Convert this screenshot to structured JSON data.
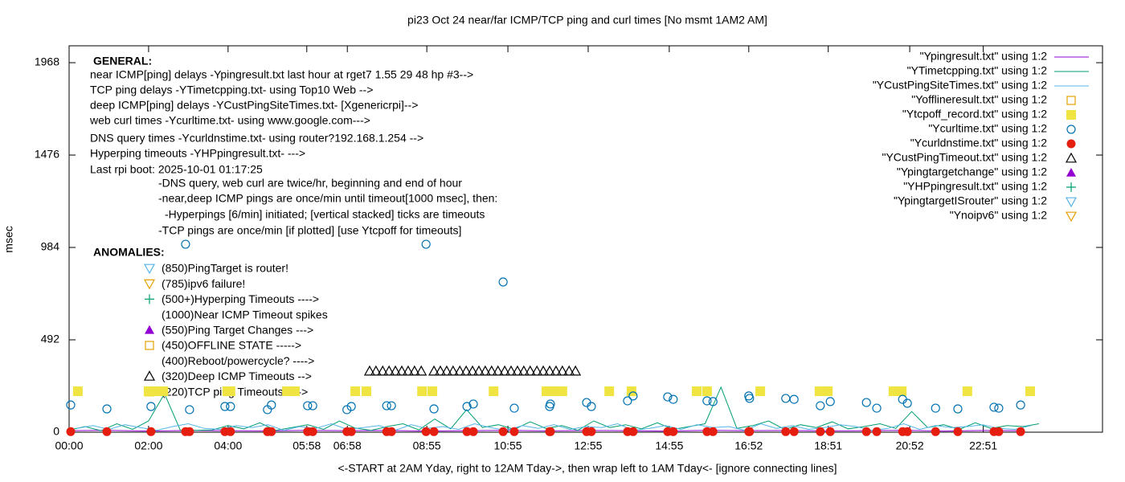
{
  "chart_data": {
    "type": "scatter",
    "title": "pi23 Oct 24 near/far ICMP/TCP ping and curl times [No msmt 1AM2 AM]",
    "x_label": "<-START at 2AM Yday, right to 12AM Tday->, then wrap left to 1AM Tday<- [ignore connecting lines]",
    "y_label": "msec",
    "xlim": [
      0,
      26
    ],
    "ylim": [
      0,
      2058
    ],
    "yticks": [
      0,
      492,
      984,
      1476,
      1968
    ],
    "xticks": [
      {
        "value": 0,
        "label": "00:00"
      },
      {
        "value": 2.0,
        "label": "02:00"
      },
      {
        "value": 4.0,
        "label": "04:00"
      },
      {
        "value": 5.98,
        "label": "05:58"
      },
      {
        "value": 7.0,
        "label": "06:58"
      },
      {
        "value": 9.0,
        "label": "08:55"
      },
      {
        "value": 11.04,
        "label": "10:55"
      },
      {
        "value": 13.06,
        "label": "12:55"
      },
      {
        "value": 15.1,
        "label": "14:55"
      },
      {
        "value": 17.1,
        "label": "16:52"
      },
      {
        "value": 19.1,
        "label": "18:51"
      },
      {
        "value": 21.15,
        "label": "20:52"
      },
      {
        "value": 23.0,
        "label": "22:51"
      }
    ],
    "legend_position": "top-right",
    "annotations": {
      "general_heading": "GENERAL:",
      "general": [
        "near ICMP[ping] delays -Ypingresult.txt last hour at rget7 1.55 29 48 hp #3-->",
        "TCP ping delays -YTimetcpping.txt- using Top10 Web -->",
        "deep ICMP[ping] delays -YCustPingSiteTimes.txt- [Xgenericrpi]-->",
        "web curl times -Ycurltime.txt- using www.google.com--->",
        "DNS query times -Ycurldnstime.txt- using router?192.168.1.254 -->",
        "Hyperping timeouts -YHPpingresult.txt- --->",
        "Last rpi boot: 2025-10-01 01:17:25",
        "-DNS query, web curl are twice/hr, beginning and end of hour",
        "-near,deep ICMP pings are once/min until timeout[1000 msec], then:",
        "-Hyperpings [6/min] initiated; [vertical stacked] ticks are timeouts",
        "-TCP pings are once/min [if plotted] [use Ytcpoff for timeouts]"
      ],
      "anomalies_heading": "ANOMALIES:",
      "anomalies": [
        "(850)PingTarget is router!",
        "(785)ipv6 failure!",
        "(500+)Hyperping Timeouts ---->",
        "(1000)Near ICMP Timeout spikes",
        "(550)Ping Target Changes --->",
        "(450)OFFLINE STATE ----->",
        "(400)Reboot/powercycle? ---->",
        "(320)Deep ICMP Timeouts -->",
        "(220)TCP ping Timeouts ---->"
      ]
    },
    "series": [
      {
        "name": "\"Ypingresult.txt\" using 1:2",
        "color": "#9400d3",
        "marker": "line",
        "x": [
          0,
          1,
          2,
          3,
          4,
          5,
          6,
          7,
          8,
          9,
          10,
          11,
          12,
          13,
          14,
          15,
          16,
          17,
          18,
          19,
          20,
          21,
          22,
          23,
          24
        ],
        "values": [
          8,
          10,
          6,
          9,
          8,
          7,
          10,
          8,
          9,
          6,
          8,
          10,
          7,
          9,
          8,
          6,
          10,
          8,
          9,
          7,
          8,
          10,
          6,
          9,
          8
        ]
      },
      {
        "name": "\"YTimetcpping.txt\" using 1:2",
        "color": "#009e73",
        "marker": "line",
        "x": [
          0,
          0.4,
          0.8,
          1.2,
          1.6,
          2,
          2.4,
          2.8,
          3.2,
          3.6,
          4,
          4.4,
          4.8,
          5.2,
          5.6,
          6,
          6.4,
          6.8,
          7.2,
          7.6,
          8,
          8.4,
          8.8,
          9.2,
          9.6,
          10,
          10.4,
          10.8,
          11.2,
          11.6,
          12,
          12.4,
          12.8,
          13.2,
          13.6,
          14,
          14.4,
          14.8,
          15.2,
          15.6,
          16,
          16.4,
          16.8,
          17.2,
          17.6,
          18,
          18.4,
          18.8,
          19.2,
          19.6,
          20,
          20.4,
          20.8,
          21.2,
          21.6,
          22,
          22.4,
          22.8,
          23.2,
          23.6,
          24,
          24.4
        ],
        "values": [
          12,
          30,
          8,
          45,
          15,
          60,
          205,
          10,
          10,
          12,
          35,
          18,
          50,
          10,
          25,
          40,
          15,
          60,
          22,
          10,
          30,
          45,
          12,
          70,
          18,
          120,
          25,
          40,
          15,
          55,
          20,
          35,
          10,
          60,
          25,
          40,
          18,
          50,
          15,
          30,
          45,
          240,
          20,
          35,
          60,
          15,
          40,
          25,
          55,
          18,
          30,
          45,
          20,
          110,
          25,
          40,
          15,
          50,
          20,
          35,
          30,
          45
        ]
      },
      {
        "name": "\"YCustPingSiteTimes.txt\" using 1:2",
        "color": "#56b4e9",
        "marker": "line",
        "x": [
          0.2,
          0.6,
          1,
          1.4,
          1.8,
          2.2,
          2.6,
          3,
          3.4,
          3.8,
          4.2,
          4.6,
          5,
          5.4,
          5.8,
          6.2,
          6.6,
          7,
          7.4,
          7.8,
          8.2,
          8.6,
          9,
          9.4,
          9.8,
          10.2,
          10.6,
          11,
          11.4,
          11.8,
          12.2,
          12.6,
          13,
          13.4,
          13.8,
          14.2,
          14.6,
          15,
          15.4,
          15.8,
          16.2,
          16.6,
          17,
          17.4,
          17.8,
          18.2,
          18.6,
          19,
          19.4,
          19.8,
          20.2,
          20.6,
          21,
          21.4,
          21.8,
          22.2,
          22.6,
          23,
          23.4,
          23.8,
          24.2
        ],
        "values": [
          20,
          35,
          15,
          40,
          25,
          10,
          30,
          45,
          20,
          15,
          35,
          25,
          40,
          10,
          30,
          20,
          45,
          15,
          25,
          35,
          10,
          40,
          20,
          30,
          15,
          45,
          25,
          10,
          35,
          20,
          40,
          15,
          30,
          25,
          45,
          10,
          20,
          35,
          15,
          40,
          25,
          30,
          10,
          45,
          20,
          35,
          15,
          25,
          40,
          30,
          10,
          20,
          45,
          15,
          35,
          25,
          30,
          40,
          20,
          15,
          35
        ]
      },
      {
        "name": "\"Yofflineresult.txt\" using 1:2",
        "color": "#e69f00",
        "marker": "open-square",
        "x": [],
        "values": []
      },
      {
        "name": "\"Ytcpoff_record.txt\" using 1:2",
        "color": "#f0e442",
        "marker": "filled-square",
        "x": [
          0.22,
          2.0,
          2.18,
          2.37,
          3.98,
          4.06,
          5.48,
          5.68,
          7.2,
          7.48,
          8.88,
          9.14,
          10.68,
          12.01,
          12.21,
          12.41,
          13.59,
          14.15,
          15.79,
          16.05,
          17.39,
          18.88,
          19.09,
          20.74,
          20.95,
          22.6,
          24.18
        ],
        "values": [
          218,
          218,
          218,
          218,
          218,
          218,
          218,
          218,
          218,
          218,
          218,
          218,
          218,
          218,
          218,
          218,
          218,
          218,
          218,
          218,
          218,
          218,
          218,
          218,
          218,
          218,
          218
        ]
      },
      {
        "name": "\"Ycurltime.txt\" using 1:2",
        "color": "#0072b2",
        "marker": "open-circle",
        "x": [
          0.04,
          0.95,
          2.06,
          2.93,
          3.03,
          3.92,
          4.06,
          4.99,
          5.09,
          6.0,
          6.13,
          6.99,
          7.1,
          7.99,
          8.11,
          8.98,
          9.18,
          10.01,
          10.17,
          10.92,
          11.2,
          12.09,
          12.11,
          13.02,
          13.14,
          14.05,
          14.19,
          15.06,
          15.2,
          16.05,
          16.2,
          17.1,
          17.12,
          18.03,
          18.24,
          18.9,
          19.15,
          20.06,
          20.32,
          20.97,
          21.09,
          21.8,
          22.36,
          23.27,
          23.39,
          23.94
        ],
        "values": [
          145,
          124,
          137,
          1001,
          120,
          137,
          137,
          120,
          145,
          141,
          141,
          120,
          137,
          141,
          141,
          1001,
          124,
          137,
          150,
          800,
          128,
          137,
          150,
          158,
          137,
          167,
          193,
          188,
          175,
          167,
          163,
          193,
          180,
          180,
          175,
          141,
          163,
          158,
          128,
          175,
          154,
          128,
          124,
          133,
          128,
          145
        ]
      },
      {
        "name": "\"Ycurldnstime.txt\" using 1:2",
        "color": "#e51e10",
        "marker": "filled-circle",
        "x": [
          0.04,
          0.95,
          2.06,
          2.93,
          3.03,
          3.92,
          4.06,
          4.99,
          5.09,
          6.0,
          6.13,
          6.99,
          7.1,
          7.99,
          8.11,
          8.98,
          9.18,
          10.01,
          10.17,
          10.92,
          11.2,
          12.09,
          12.11,
          13.02,
          13.14,
          14.05,
          14.19,
          15.06,
          15.2,
          16.05,
          16.2,
          17.1,
          17.12,
          18.03,
          18.24,
          18.9,
          19.15,
          20.06,
          20.32,
          20.97,
          21.09,
          21.8,
          22.36,
          23.27,
          23.39,
          23.94
        ],
        "values": [
          3,
          3,
          3,
          3,
          3,
          3,
          3,
          3,
          3,
          3,
          3,
          3,
          3,
          3,
          3,
          3,
          3,
          3,
          3,
          3,
          3,
          3,
          3,
          3,
          3,
          3,
          3,
          3,
          3,
          3,
          3,
          3,
          3,
          3,
          3,
          3,
          3,
          3,
          3,
          3,
          3,
          3,
          3,
          3,
          3,
          3
        ]
      },
      {
        "name": "\"YCustPingTimeout.txt\" using 1:2",
        "color": "#000000",
        "marker": "open-triangle",
        "x": [
          7.56,
          7.72,
          7.89,
          8.05,
          8.21,
          8.37,
          8.53,
          8.69,
          8.86,
          9.18,
          9.34,
          9.5,
          9.66,
          9.83,
          9.99,
          10.15,
          10.31,
          10.47,
          10.63,
          10.79,
          10.96,
          11.12,
          11.28,
          11.44,
          11.6,
          11.77,
          11.93,
          12.09,
          12.25,
          12.41,
          12.58,
          12.74
        ],
        "values": [
          325,
          325,
          325,
          325,
          325,
          325,
          325,
          325,
          325,
          325,
          325,
          325,
          325,
          325,
          325,
          325,
          325,
          325,
          325,
          325,
          325,
          325,
          325,
          325,
          325,
          325,
          325,
          325,
          325,
          325,
          325,
          325
        ]
      },
      {
        "name": "\"Ypingtargetchange\" using 1:2",
        "color": "#9400d3",
        "marker": "filled-triangle",
        "x": [],
        "values": []
      },
      {
        "name": "\"YHPpingresult.txt\" using 1:2",
        "color": "#009e73",
        "marker": "plus",
        "x": [],
        "values": []
      },
      {
        "name": "\"YpingtargetISrouter\" using 1:2",
        "color": "#56b4e9",
        "marker": "open-down-triangle",
        "x": [],
        "values": []
      },
      {
        "name": "\"Ynoipv6\" using 1:2",
        "color": "#e69f00",
        "marker": "open-down-triangle",
        "x": [],
        "values": []
      }
    ]
  }
}
